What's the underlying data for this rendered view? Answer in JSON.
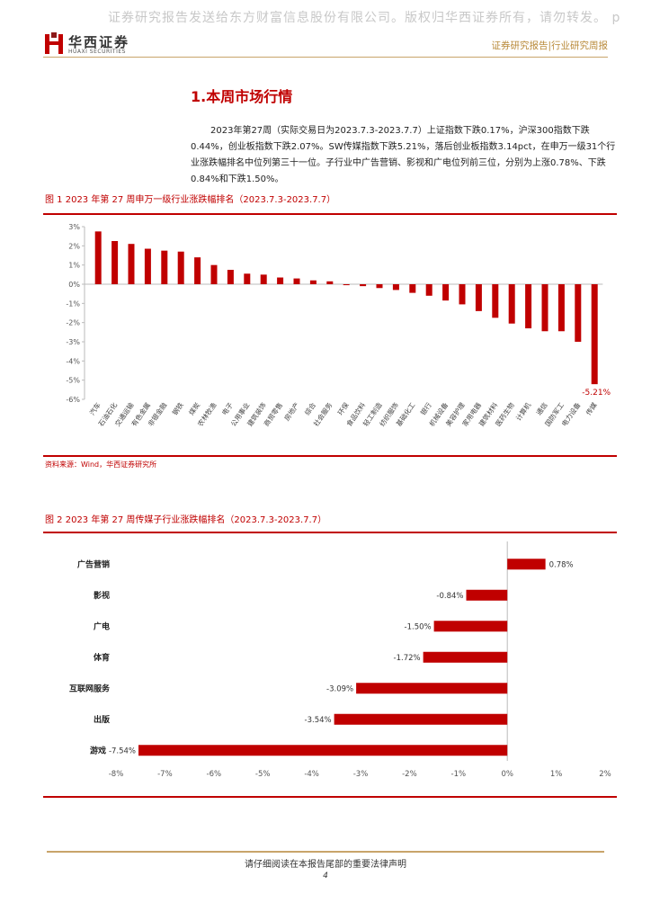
{
  "watermark": "证券研究报告发送给东方财富信息股份有限公司。版权归华西证券所有，请勿转发。 p",
  "header": {
    "logo_cn": "华西证券",
    "logo_en": "HUAXI SECURITIES",
    "report_type": "证券研究报告|行业研究周报"
  },
  "section": {
    "title": "1.本周市场行情",
    "body": "2023年第27周（实际交易日为2023.7.3-2023.7.7）上证指数下跌0.17%，沪深300指数下跌0.44%，创业板指数下跌2.07%。SW传媒指数下跌5.21%，落后创业板指数3.14pct，在申万一级31个行业涨跌幅排名中位列第三十一位。子行业中广告营销、影视和广电位列前三位，分别为上涨0.78%、下跌0.84%和下跌1.50%。"
  },
  "figure1": {
    "title": "图 1 2023 年第 27 周申万一级行业涨跌幅排名（2023.7.3-2023.7.7）",
    "source": "资料来源：Wind，华西证券研究所"
  },
  "figure2": {
    "title": "图 2 2023 年第 27 周传媒子行业涨跌幅排名（2023.7.3-2023.7.7）"
  },
  "footer": {
    "notice": "请仔细阅读在本报告尾部的重要法律声明",
    "page": "4"
  },
  "colors": {
    "bar": "#c00000",
    "accent_gold": "#c8a46a"
  },
  "chart_data": [
    {
      "type": "bar",
      "title": "",
      "categories": [
        "汽车",
        "石油石化",
        "交通运输",
        "有色金属",
        "非银金融",
        "钢铁",
        "煤炭",
        "农林牧渔",
        "电子",
        "公用事业",
        "建筑装饰",
        "商贸零售",
        "房地产",
        "综合",
        "社会服务",
        "环保",
        "食品饮料",
        "轻工制造",
        "纺织服饰",
        "基础化工",
        "银行",
        "机械设备",
        "美容护理",
        "家用电器",
        "建筑材料",
        "医药生物",
        "计算机",
        "通信",
        "国防军工",
        "电力设备",
        "传媒"
      ],
      "values": [
        2.75,
        2.25,
        2.1,
        1.85,
        1.75,
        1.7,
        1.4,
        1.0,
        0.75,
        0.55,
        0.5,
        0.35,
        0.3,
        0.2,
        0.15,
        -0.05,
        -0.1,
        -0.2,
        -0.3,
        -0.45,
        -0.6,
        -0.85,
        -1.05,
        -1.4,
        -1.75,
        -2.05,
        -2.3,
        -2.45,
        -2.45,
        -3.0,
        -5.21
      ],
      "ylim": [
        -6,
        3
      ],
      "yticks": [
        "3%",
        "2%",
        "1%",
        "0%",
        "-1%",
        "-2%",
        "-3%",
        "-4%",
        "-5%",
        "-6%"
      ],
      "annotation": "-5.21%",
      "grid": false
    },
    {
      "type": "bar",
      "orientation": "horizontal",
      "title": "",
      "categories": [
        "广告营销",
        "影视",
        "广电",
        "体育",
        "互联网服务",
        "出版",
        "游戏"
      ],
      "values": [
        0.78,
        -0.84,
        -1.5,
        -1.72,
        -3.09,
        -3.54,
        -7.54
      ],
      "labels": [
        "0.78%",
        "-0.84%",
        "-1.50%",
        "-1.72%",
        "-3.09%",
        "-3.54%",
        "-7.54%"
      ],
      "xlim": [
        -8,
        2
      ],
      "xticks": [
        "-8%",
        "-7%",
        "-6%",
        "-5%",
        "-4%",
        "-3%",
        "-2%",
        "-1%",
        "0%",
        "1%",
        "2%"
      ],
      "grid": false
    }
  ]
}
